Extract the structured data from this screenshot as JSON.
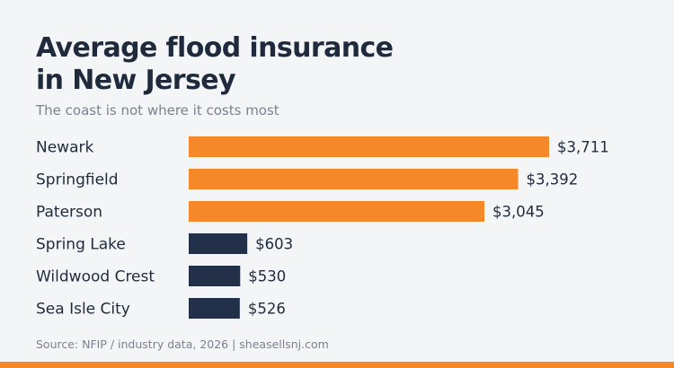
{
  "header": {
    "title_line1": "Average flood insurance",
    "title_line2": "in New Jersey",
    "subtitle": "The coast is not where it costs most"
  },
  "footer": {
    "source": "Source: NFIP / industry data, 2026  |  sheasellsnj.com"
  },
  "colors": {
    "highlight": "#f5892a",
    "default": "#22304a",
    "accent_bar": "#f5892a"
  },
  "chart_data": {
    "type": "bar",
    "orientation": "horizontal",
    "categories": [
      "Newark",
      "Springfield",
      "Paterson",
      "Spring Lake",
      "Wildwood Crest",
      "Sea Isle City"
    ],
    "values": [
      3711,
      3392,
      3045,
      603,
      530,
      526
    ],
    "value_labels": [
      "$3,711",
      "$3,392",
      "$3,045",
      "$603",
      "$530",
      "$526"
    ],
    "highlighted": [
      true,
      true,
      true,
      false,
      false,
      false
    ],
    "xlim": [
      0,
      3711
    ],
    "grid": false,
    "legend": "none"
  }
}
